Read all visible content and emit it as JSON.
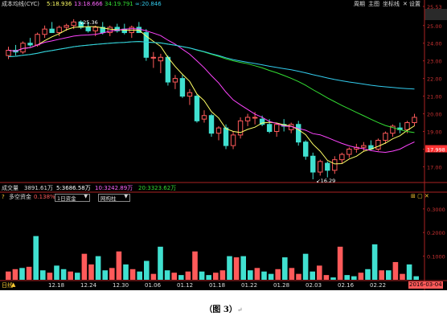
{
  "header": {
    "indicator": "成本均线(CYC)",
    "ma5": "5:18.936",
    "ma13": "13:18.666",
    "ma34": "34:19.791",
    "ma_inf": "∞:20.846",
    "buttons": [
      "周期",
      "主图",
      "坐标线",
      "✕",
      "设置"
    ]
  },
  "price_axis": {
    "labels": [
      "25.53",
      "25.00",
      "24.00",
      "23.00",
      "22.00",
      "21.00",
      "20.00",
      "19.00",
      "17.998",
      "17.00"
    ],
    "current": "17.998"
  },
  "annotations": {
    "high": "25.36",
    "low": "16.29"
  },
  "volume_header": {
    "label": "成交量",
    "value": "3891.61万",
    "ma5": "5:3686.58万",
    "ma10": "10:3242.89万",
    "ma20": "20:3323.62万"
  },
  "sub_panel": {
    "label": "多空资金",
    "percent": "0.138%",
    "select1": "1日资金",
    "select2": "网构柱",
    "axis": [
      "0.3000",
      "0.2000",
      "0.1000"
    ]
  },
  "date_axis": {
    "period": "日线",
    "dates": [
      "12.18",
      "12.24",
      "12.30",
      "01.06",
      "01.12",
      "01.18",
      "01.22",
      "01.28",
      "02.03",
      "02.16",
      "02.22"
    ],
    "date_tag": "2016-03-04"
  },
  "caption": {
    "text": "（图 3）",
    "mark": "↵"
  },
  "colors": {
    "up": "#ff5a5a",
    "down": "#40e0d0",
    "ma5": "#ffff66",
    "ma13": "#ff44ff",
    "ma34": "#33dd33",
    "ma_inf": "#33ccee"
  },
  "chart_data": [
    {
      "type": "candlestick",
      "title": "成本均线(CYC)",
      "x": [
        "12.18",
        "12.24",
        "12.30",
        "01.06",
        "01.12",
        "01.18",
        "01.22",
        "01.28",
        "02.03",
        "02.16",
        "02.22"
      ],
      "ohlc": [
        [
          23.3,
          23.8,
          23.1,
          23.6
        ],
        [
          23.6,
          23.9,
          23.3,
          23.5
        ],
        [
          23.5,
          24.1,
          23.4,
          24.0
        ],
        [
          24.0,
          24.3,
          23.8,
          23.9
        ],
        [
          23.9,
          24.6,
          23.8,
          24.5
        ],
        [
          24.5,
          25.0,
          24.3,
          24.8
        ],
        [
          24.8,
          25.2,
          24.6,
          24.6
        ],
        [
          24.6,
          25.0,
          24.4,
          24.9
        ],
        [
          24.9,
          25.1,
          24.7,
          25.0
        ],
        [
          25.0,
          25.36,
          24.8,
          25.2
        ],
        [
          25.2,
          25.3,
          24.8,
          24.9
        ],
        [
          24.9,
          25.2,
          24.6,
          24.7
        ],
        [
          24.7,
          25.0,
          24.4,
          24.9
        ],
        [
          24.9,
          25.2,
          24.5,
          24.6
        ],
        [
          24.6,
          25.0,
          24.4,
          24.9
        ],
        [
          24.9,
          25.1,
          24.6,
          24.7
        ],
        [
          24.8,
          25.1,
          24.5,
          24.6
        ],
        [
          24.6,
          25.0,
          24.3,
          24.9
        ],
        [
          24.9,
          25.2,
          24.6,
          24.6
        ],
        [
          24.6,
          24.8,
          23.0,
          23.2
        ],
        [
          23.2,
          23.5,
          22.6,
          23.2
        ],
        [
          23.0,
          23.4,
          22.3,
          23.2
        ],
        [
          23.2,
          23.3,
          21.6,
          21.8
        ],
        [
          21.8,
          22.2,
          21.4,
          22.0
        ],
        [
          22.0,
          22.2,
          20.9,
          21.0
        ],
        [
          21.0,
          21.4,
          20.5,
          21.2
        ],
        [
          21.0,
          21.1,
          19.5,
          19.6
        ],
        [
          19.7,
          20.2,
          19.5,
          19.9
        ],
        [
          19.9,
          20.0,
          18.7,
          18.9
        ],
        [
          18.9,
          19.3,
          18.5,
          19.2
        ],
        [
          19.2,
          19.4,
          18.0,
          18.2
        ],
        [
          18.2,
          19.0,
          18.0,
          18.8
        ],
        [
          18.8,
          19.8,
          18.6,
          19.6
        ],
        [
          19.6,
          20.0,
          19.3,
          19.8
        ],
        [
          19.8,
          20.1,
          19.4,
          19.8
        ],
        [
          19.7,
          19.9,
          19.3,
          19.4
        ],
        [
          19.4,
          19.7,
          18.9,
          19.0
        ],
        [
          19.0,
          19.5,
          18.7,
          19.4
        ],
        [
          19.4,
          19.7,
          19.0,
          19.3
        ],
        [
          19.1,
          19.5,
          18.9,
          19.4
        ],
        [
          19.4,
          19.6,
          18.2,
          18.4
        ],
        [
          18.4,
          18.5,
          17.4,
          17.6
        ],
        [
          17.6,
          17.8,
          16.29,
          16.7
        ],
        [
          16.7,
          17.4,
          16.5,
          17.3
        ],
        [
          17.2,
          17.3,
          16.4,
          16.8
        ],
        [
          16.8,
          17.6,
          16.6,
          17.4
        ],
        [
          17.4,
          17.8,
          17.2,
          17.7
        ],
        [
          17.7,
          18.1,
          17.5,
          18.0
        ],
        [
          18.0,
          18.3,
          17.8,
          18.1
        ],
        [
          18.1,
          18.4,
          17.9,
          18.2
        ],
        [
          18.2,
          18.5,
          17.9,
          18.0
        ],
        [
          18.0,
          18.6,
          17.9,
          18.5
        ],
        [
          18.5,
          19.0,
          18.3,
          18.9
        ],
        [
          18.9,
          19.4,
          18.7,
          19.3
        ],
        [
          19.2,
          19.5,
          18.9,
          19.1
        ],
        [
          19.1,
          19.6,
          18.9,
          19.5
        ],
        [
          19.5,
          20.0,
          19.3,
          19.8
        ]
      ],
      "series": [
        {
          "name": "5:18.936",
          "key": "ma5"
        },
        {
          "name": "13:18.666",
          "key": "ma13"
        },
        {
          "name": "34:19.791",
          "key": "ma34"
        },
        {
          "name": "∞:20.846",
          "key": "ma_inf"
        }
      ],
      "ylim": [
        16.2,
        25.9
      ]
    },
    {
      "type": "bar",
      "title": "多空资金",
      "values": [
        0.035,
        0.045,
        0.05,
        0.055,
        0.185,
        0.04,
        0.03,
        0.06,
        0.045,
        0.035,
        0.03,
        0.11,
        0.065,
        0.1,
        0.04,
        0.05,
        0.12,
        0.065,
        0.045,
        0.035,
        0.08,
        0.025,
        0.14,
        0.04,
        0.03,
        0.02,
        0.035,
        0.12,
        0.035,
        0.02,
        0.03,
        0.04,
        0.1,
        0.095,
        0.1,
        0.04,
        0.05,
        0.035,
        0.025,
        0.045,
        0.095,
        0.05,
        0.025,
        0.11,
        0.035,
        0.06,
        0.02,
        0.01,
        0.14,
        0.02,
        0.015,
        0.03,
        0.045,
        0.15,
        0.04,
        0.04,
        0.075,
        0.025,
        0.065,
        0.015
      ],
      "colors_pattern": "up_down",
      "ylim": [
        0,
        0.33
      ]
    }
  ]
}
